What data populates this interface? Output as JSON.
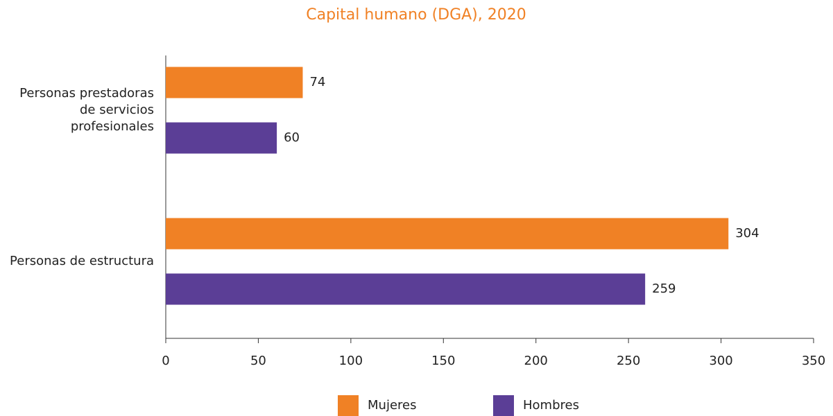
{
  "chart_data": {
    "type": "hbar",
    "title": "Capital humano (DGA), 2020",
    "categories": [
      "Personas prestadoras de servicios profesionales",
      "Personas de estructura"
    ],
    "series": [
      {
        "name": "Mujeres",
        "color": "#f08125",
        "values": [
          74,
          304
        ]
      },
      {
        "name": "Hombres",
        "color": "#5b3e96",
        "values": [
          60,
          259
        ]
      }
    ],
    "xlim": [
      0,
      350
    ],
    "xticks": [
      0,
      50,
      100,
      150,
      200,
      250,
      300,
      350
    ]
  }
}
